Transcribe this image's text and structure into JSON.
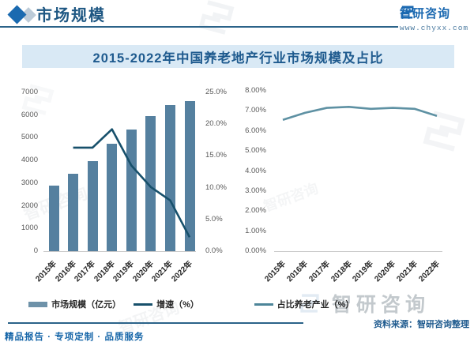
{
  "header": {
    "section_title": "市场规模",
    "brand": "智研咨询",
    "website": "www.chyxx.com"
  },
  "title": "2015-2022年中国养老地产行业市场规模及占比",
  "footer": {
    "source": "资料来源：智研咨询整理",
    "tagline": "精品报告 · 专项定制 · 品质服务",
    "watermark": "智研咨询"
  },
  "colors": {
    "bar": "#55809f",
    "bar_legend": "#6e92a9",
    "growth_line": "#17506b",
    "share_line": "#4d8599",
    "accent_blue": "#1e5a8e",
    "banner_bg": "#d9e9f5",
    "brand_blue": "#1b69b1"
  },
  "chart_data": [
    {
      "type": "bar",
      "categories": [
        "2015年",
        "2016年",
        "2017年",
        "2018年",
        "2019年",
        "2020年",
        "2021年",
        "2022年"
      ],
      "series": [
        {
          "name": "市场规模（亿元）",
          "type": "bar",
          "axis": "left",
          "values": [
            2900,
            3400,
            3970,
            4730,
            5380,
            5940,
            6450,
            6600
          ]
        },
        {
          "name": "增速（%）",
          "type": "line",
          "axis": "right",
          "values": [
            null,
            16.3,
            16.3,
            19.2,
            13.5,
            10.1,
            8.0,
            2.2
          ]
        }
      ],
      "left_axis": {
        "min": 0,
        "max": 7000,
        "step": 1000,
        "tick_labels": [
          "7000",
          "6000",
          "5000",
          "4000",
          "3000",
          "2000",
          "1000",
          "0"
        ]
      },
      "right_axis": {
        "min": 0,
        "max": 25,
        "step": 5,
        "tick_labels": [
          "25.0%",
          "20.0%",
          "15.0%",
          "10.0%",
          "5.0%",
          "0.0%"
        ]
      },
      "grid": false,
      "legend_position": "bottom"
    },
    {
      "type": "line",
      "categories": [
        "2015年",
        "2016年",
        "2017年",
        "2018年",
        "2019年",
        "2020年",
        "2021年",
        "2022年"
      ],
      "series": [
        {
          "name": "占比养老产业（%）",
          "values": [
            6.55,
            6.9,
            7.15,
            7.2,
            7.1,
            7.15,
            7.1,
            6.75
          ]
        }
      ],
      "y_axis": {
        "min": 0,
        "max": 8,
        "step": 1,
        "tick_labels": [
          "8.00%",
          "7.00%",
          "6.00%",
          "5.00%",
          "4.00%",
          "3.00%",
          "2.00%",
          "1.00%",
          "0.00%"
        ]
      },
      "grid": false,
      "legend_position": "bottom"
    }
  ]
}
